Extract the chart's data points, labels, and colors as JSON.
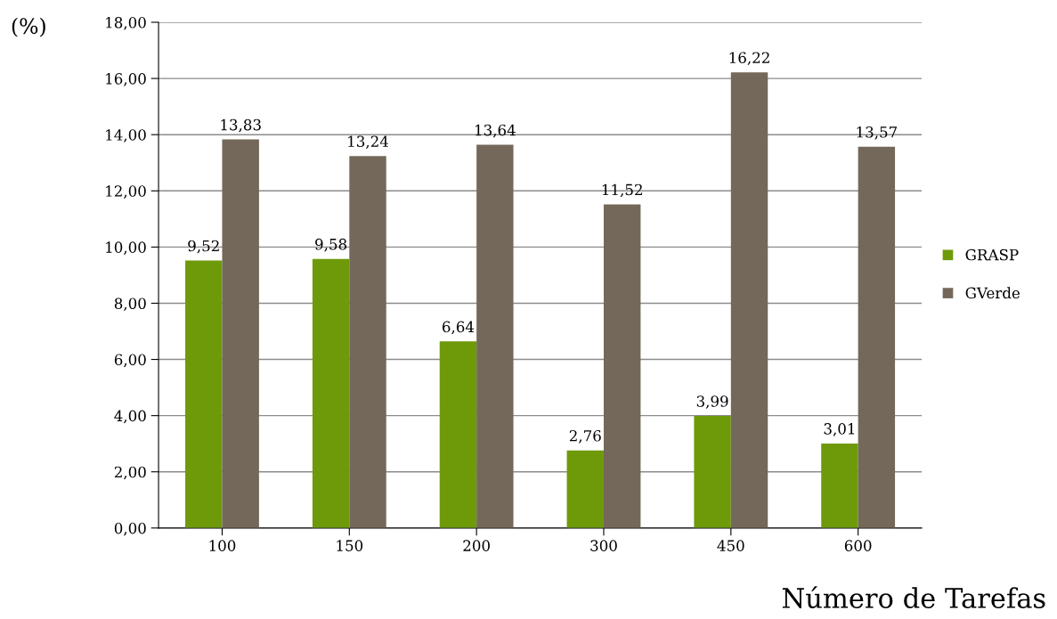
{
  "chart_data": {
    "type": "bar",
    "xlabel": "Número de Tarefas",
    "ylabel": "(%)",
    "categories": [
      "100",
      "150",
      "200",
      "300",
      "450",
      "600"
    ],
    "series": [
      {
        "name": "GRASP",
        "color": "#6e9a0a",
        "values": [
          9.52,
          9.58,
          6.64,
          2.76,
          3.99,
          3.01
        ],
        "value_labels": [
          "9,52",
          "9,58",
          "6,64",
          "2,76",
          "3,99",
          "3,01"
        ]
      },
      {
        "name": "GVerde",
        "color": "#73685a",
        "values": [
          13.83,
          13.24,
          13.64,
          11.52,
          16.22,
          13.57
        ],
        "value_labels": [
          "13,83",
          "13,24",
          "13,64",
          "11,52",
          "16,22",
          "13,57"
        ]
      }
    ],
    "ylim": [
      0,
      18
    ],
    "yticks": [
      {
        "value": 0,
        "label": "0,00"
      },
      {
        "value": 2,
        "label": "2,00"
      },
      {
        "value": 4,
        "label": "4,00"
      },
      {
        "value": 6,
        "label": "6,00"
      },
      {
        "value": 8,
        "label": "8,00"
      },
      {
        "value": 10,
        "label": "10,00"
      },
      {
        "value": 12,
        "label": "12,00"
      },
      {
        "value": 14,
        "label": "14,00"
      },
      {
        "value": 16,
        "label": "16,00"
      },
      {
        "value": 18,
        "label": "18,00"
      }
    ],
    "grid": "y",
    "legend": "right"
  }
}
